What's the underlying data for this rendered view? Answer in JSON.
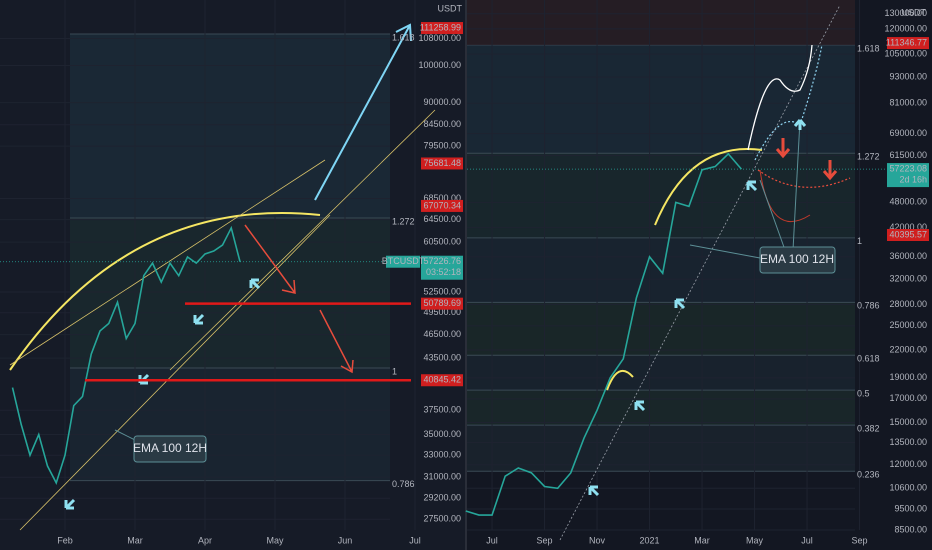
{
  "chart_data": [
    {
      "type": "line",
      "currency": "USDT",
      "color": "#26a69a",
      "log_scale": true,
      "grid": true,
      "categories": [
        null,
        null,
        null,
        null,
        null,
        null,
        "Feb",
        null,
        null,
        null,
        null,
        null,
        null,
        null,
        "Mar",
        null,
        null,
        null,
        null,
        null,
        null,
        null,
        "Apr",
        null,
        null,
        null,
        null,
        null,
        null,
        null,
        "May",
        null,
        null,
        null,
        null,
        null,
        null,
        null,
        "Jun",
        null,
        null,
        null,
        null,
        null,
        null,
        null,
        "Jul"
      ],
      "values": [
        40000,
        36000,
        33000,
        35000,
        32000,
        30500,
        33000,
        38000,
        39000,
        44000,
        47000,
        48000,
        51000,
        46000,
        48000,
        55000,
        57000,
        54000,
        57000,
        55000,
        58000,
        57000,
        58500,
        59000,
        60000,
        63000,
        57226.76,
        null,
        null,
        null,
        null,
        null,
        null,
        null,
        null,
        null,
        null,
        null,
        null,
        null,
        null,
        null,
        null,
        null,
        null,
        null,
        null
      ],
      "ylim": [
        25200,
        120500
      ],
      "yticks": [
        {
          "value": 108000,
          "label": "108000.00"
        },
        {
          "value": 100000,
          "label": "100000.00"
        },
        {
          "value": 90000,
          "label": "90000.00"
        },
        {
          "value": 84500,
          "label": "84500.00"
        },
        {
          "value": 79500,
          "label": "79500.00"
        },
        {
          "value": 68500,
          "label": "68500.00"
        },
        {
          "value": 64500,
          "label": "64500.00"
        },
        {
          "value": 60500,
          "label": "60500.00"
        },
        {
          "value": 52500,
          "label": "52500.00"
        },
        {
          "value": 49500,
          "label": "49500.00"
        },
        {
          "value": 46500,
          "label": "46500.00"
        },
        {
          "value": 43500,
          "label": "43500.00"
        },
        {
          "value": 37500,
          "label": "37500.00"
        },
        {
          "value": 35000,
          "label": "35000.00"
        },
        {
          "value": 33000,
          "label": "33000.00"
        },
        {
          "value": 31000,
          "label": "31000.00"
        },
        {
          "value": 29200,
          "label": "29200.00"
        },
        {
          "value": 27500,
          "label": "27500.00"
        }
      ],
      "price_marks": [
        {
          "value": 111258.99
        },
        {
          "value": 75681.48
        },
        {
          "value": 67070.34
        },
        {
          "value": 50789.69,
          "line": true
        },
        {
          "value": 40845.42,
          "line": true
        }
      ],
      "last_price": {
        "symbol": "BTCUSDT",
        "value": 57226.76,
        "countdown": "03:52:18"
      },
      "fib_levels": [
        {
          "value": 109400,
          "label": "1.618"
        },
        {
          "value": 64800,
          "label": "1.272"
        },
        {
          "value": 42300,
          "label": "1"
        },
        {
          "value": 30700,
          "label": "0.786"
        }
      ],
      "annotation": "EMA 100 12H"
    },
    {
      "type": "line",
      "currency": "USDT",
      "color": "#26a69a",
      "log_scale": true,
      "grid": true,
      "categories": [
        null,
        null,
        "Jul",
        null,
        null,
        null,
        "Sep",
        null,
        null,
        null,
        "Nov",
        null,
        null,
        null,
        "2021",
        null,
        null,
        null,
        "Mar",
        null,
        null,
        null,
        "May",
        null,
        null,
        null,
        "Jul",
        null,
        null,
        null,
        "Sep"
      ],
      "values": [
        9400,
        9200,
        9200,
        11300,
        11800,
        11500,
        10700,
        10600,
        11500,
        13800,
        16000,
        19000,
        21000,
        29000,
        36000,
        33000,
        48000,
        47000,
        57000,
        58000,
        62000,
        57223.08,
        null,
        null,
        null,
        null,
        null,
        null,
        null,
        null,
        null
      ],
      "ylim": [
        7650,
        139800
      ],
      "yticks": [
        {
          "value": 130000,
          "label": "130000.00"
        },
        {
          "value": 120000,
          "label": "120000.00"
        },
        {
          "value": 105000,
          "label": "105000.00"
        },
        {
          "value": 93000,
          "label": "93000.00"
        },
        {
          "value": 81000,
          "label": "81000.00"
        },
        {
          "value": 69000,
          "label": "69000.00"
        },
        {
          "value": 61500,
          "label": "61500.00"
        },
        {
          "value": 48000,
          "label": "48000.00"
        },
        {
          "value": 42000,
          "label": "42000.00"
        },
        {
          "value": 36000,
          "label": "36000.00"
        },
        {
          "value": 32000,
          "label": "32000.00"
        },
        {
          "value": 28000,
          "label": "28000.00"
        },
        {
          "value": 25000,
          "label": "25000.00"
        },
        {
          "value": 22000,
          "label": "22000.00"
        },
        {
          "value": 19000,
          "label": "19000.00"
        },
        {
          "value": 17000,
          "label": "17000.00"
        },
        {
          "value": 15000,
          "label": "15000.00"
        },
        {
          "value": 13500,
          "label": "13500.00"
        },
        {
          "value": 12000,
          "label": "12000.00"
        },
        {
          "value": 10600,
          "label": "10600.00"
        },
        {
          "value": 9500,
          "label": "9500.00"
        },
        {
          "value": 8500,
          "label": "8500.00"
        }
      ],
      "price_marks": [
        {
          "value": 111346.77
        },
        {
          "value": 40395.57
        }
      ],
      "last_price": {
        "value": 57223.08,
        "countdown": "2d 16h"
      },
      "fib_levels": [
        {
          "value": 110200,
          "label": "1.618"
        },
        {
          "value": 62200,
          "label": "1.272"
        },
        {
          "value": 39800,
          "label": "1"
        },
        {
          "value": 28300,
          "label": "0.786"
        },
        {
          "value": 21400,
          "label": "0.618"
        },
        {
          "value": 17800,
          "label": "0.5"
        },
        {
          "value": 14800,
          "label": "0.382"
        },
        {
          "value": 11600,
          "label": "0.236"
        }
      ],
      "annotation": "EMA 100 12H"
    }
  ]
}
